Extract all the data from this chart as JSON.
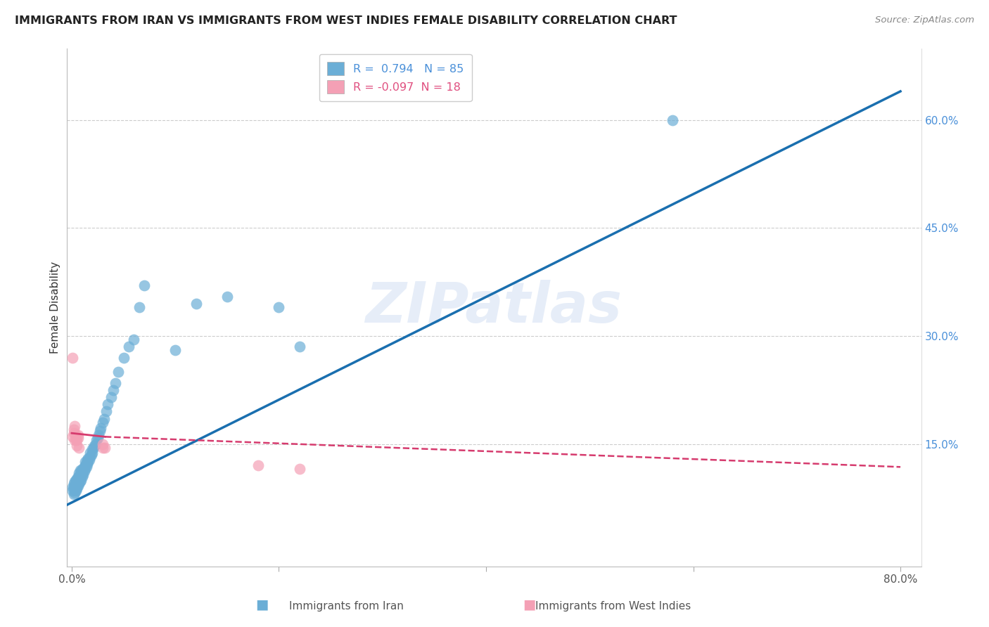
{
  "title": "IMMIGRANTS FROM IRAN VS IMMIGRANTS FROM WEST INDIES FEMALE DISABILITY CORRELATION CHART",
  "source": "Source: ZipAtlas.com",
  "ylabel": "Female Disability",
  "iran_color": "#6baed6",
  "iran_color_line": "#1a6faf",
  "west_color": "#f4a0b5",
  "west_color_line": "#d63b6e",
  "R_iran": 0.794,
  "N_iran": 85,
  "R_west": -0.097,
  "N_west": 18,
  "legend_label_iran": "Immigrants from Iran",
  "legend_label_west": "Immigrants from West Indies",
  "watermark": "ZIPatlas",
  "iran_x": [
    0.001,
    0.001,
    0.002,
    0.002,
    0.002,
    0.003,
    0.003,
    0.003,
    0.003,
    0.003,
    0.004,
    0.004,
    0.004,
    0.004,
    0.004,
    0.005,
    0.005,
    0.005,
    0.005,
    0.005,
    0.005,
    0.006,
    0.006,
    0.006,
    0.006,
    0.007,
    0.007,
    0.007,
    0.007,
    0.008,
    0.008,
    0.008,
    0.008,
    0.009,
    0.009,
    0.009,
    0.01,
    0.01,
    0.01,
    0.011,
    0.011,
    0.012,
    0.012,
    0.013,
    0.013,
    0.013,
    0.014,
    0.014,
    0.015,
    0.015,
    0.016,
    0.016,
    0.017,
    0.018,
    0.018,
    0.019,
    0.02,
    0.02,
    0.021,
    0.022,
    0.023,
    0.024,
    0.025,
    0.026,
    0.027,
    0.028,
    0.03,
    0.031,
    0.033,
    0.035,
    0.038,
    0.04,
    0.042,
    0.045,
    0.05,
    0.055,
    0.06,
    0.065,
    0.07,
    0.1,
    0.12,
    0.15,
    0.2,
    0.22,
    0.58
  ],
  "iran_y": [
    0.085,
    0.09,
    0.08,
    0.09,
    0.095,
    0.082,
    0.088,
    0.092,
    0.086,
    0.098,
    0.088,
    0.092,
    0.096,
    0.1,
    0.085,
    0.09,
    0.094,
    0.098,
    0.102,
    0.088,
    0.095,
    0.092,
    0.096,
    0.1,
    0.105,
    0.095,
    0.1,
    0.105,
    0.11,
    0.098,
    0.103,
    0.108,
    0.113,
    0.1,
    0.106,
    0.112,
    0.105,
    0.11,
    0.115,
    0.108,
    0.113,
    0.112,
    0.118,
    0.115,
    0.12,
    0.125,
    0.118,
    0.124,
    0.122,
    0.128,
    0.125,
    0.13,
    0.128,
    0.132,
    0.138,
    0.135,
    0.138,
    0.143,
    0.145,
    0.148,
    0.15,
    0.155,
    0.158,
    0.162,
    0.168,
    0.172,
    0.18,
    0.185,
    0.195,
    0.205,
    0.215,
    0.225,
    0.235,
    0.25,
    0.27,
    0.285,
    0.295,
    0.34,
    0.37,
    0.28,
    0.345,
    0.355,
    0.34,
    0.285,
    0.6
  ],
  "west_x": [
    0.001,
    0.001,
    0.002,
    0.002,
    0.003,
    0.003,
    0.004,
    0.004,
    0.005,
    0.005,
    0.006,
    0.006,
    0.007,
    0.03,
    0.03,
    0.032,
    0.18,
    0.22
  ],
  "west_y": [
    0.27,
    0.16,
    0.165,
    0.17,
    0.155,
    0.175,
    0.155,
    0.162,
    0.148,
    0.155,
    0.158,
    0.162,
    0.145,
    0.145,
    0.15,
    0.145,
    0.12,
    0.115
  ],
  "xlim": [
    -0.005,
    0.82
  ],
  "ylim": [
    -0.02,
    0.7
  ],
  "xticks": [
    0.0,
    0.2,
    0.4,
    0.6,
    0.8
  ],
  "xtick_labels": [
    "0.0%",
    "",
    "",
    "",
    "80.0%"
  ],
  "yticks_right": [
    0.15,
    0.3,
    0.45,
    0.6
  ],
  "ytick_labels_right": [
    "15.0%",
    "30.0%",
    "45.0%",
    "60.0%"
  ]
}
